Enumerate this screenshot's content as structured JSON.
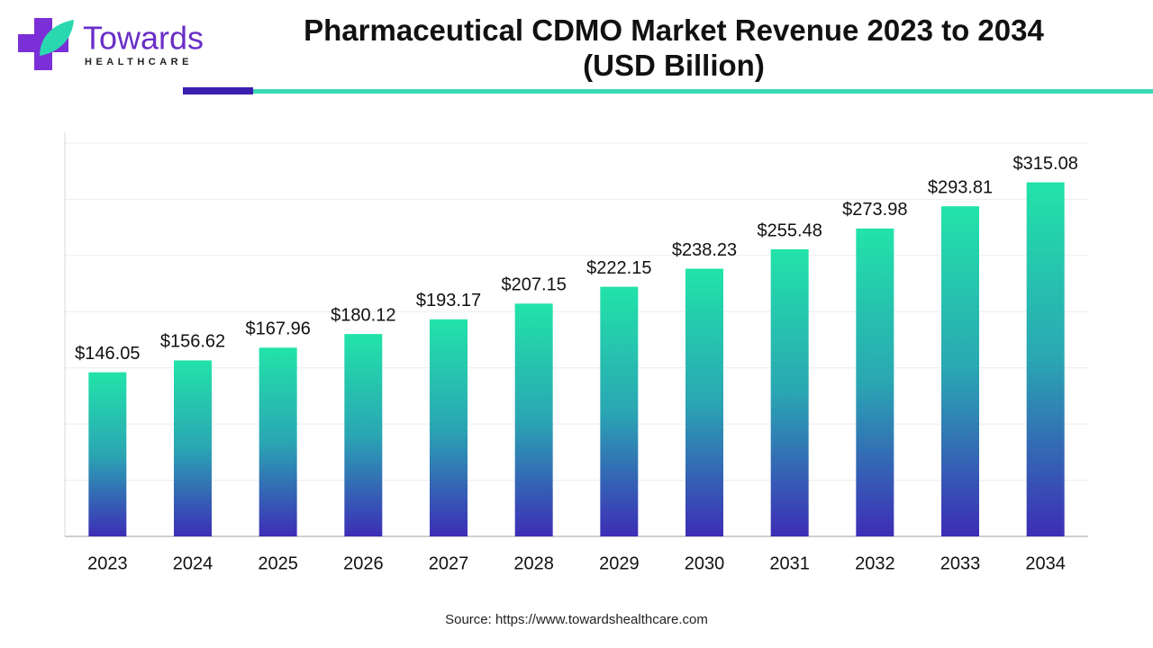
{
  "logo": {
    "name": "Towards",
    "tagline": "HEALTHCARE"
  },
  "chart_data": {
    "type": "bar",
    "title": "Pharmaceutical CDMO Market Revenue 2023 to 2034 (USD Billion)",
    "categories": [
      "2023",
      "2024",
      "2025",
      "2026",
      "2027",
      "2028",
      "2029",
      "2030",
      "2031",
      "2032",
      "2033",
      "2034"
    ],
    "values": [
      146.05,
      156.62,
      167.96,
      180.12,
      193.17,
      207.15,
      222.15,
      238.23,
      255.48,
      273.98,
      293.81,
      315.08
    ],
    "value_labels": [
      "$146.05",
      "$156.62",
      "$167.96",
      "$180.12",
      "$193.17",
      "$207.15",
      "$222.15",
      "$238.23",
      "$255.48",
      "$273.98",
      "$293.81",
      "$315.08"
    ],
    "color_top": "#22e3a9",
    "color_bottom": "#3d2db6",
    "ylim": [
      0,
      350
    ],
    "yticks": [
      0,
      50,
      100,
      150,
      200,
      250,
      300,
      350
    ],
    "grid": true,
    "source": "Source: https://www.towardshealthcare.com"
  }
}
